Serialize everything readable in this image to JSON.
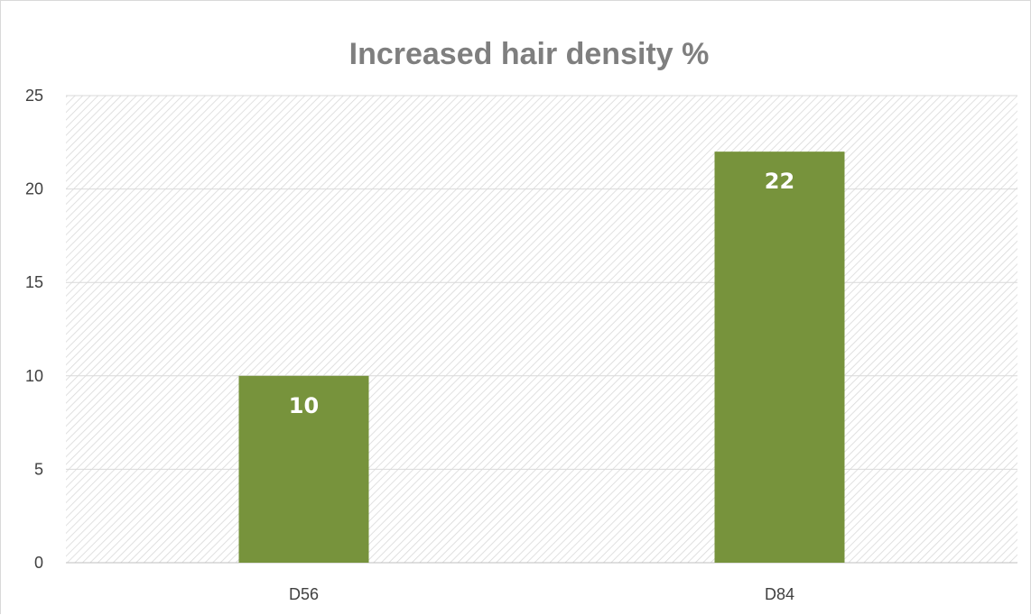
{
  "chart_data": {
    "type": "bar",
    "title": "Increased hair density %",
    "categories": [
      "D56",
      "D84"
    ],
    "values": [
      10,
      22
    ],
    "data_labels": [
      "10",
      "22"
    ],
    "xlabel": "",
    "ylabel": "",
    "ylim": [
      0,
      25
    ],
    "y_ticks": [
      "0",
      "5",
      "10",
      "15",
      "20",
      "25"
    ],
    "grid": true,
    "legend": "none",
    "colors": {
      "bar": "#77933c",
      "title": "#7f7f7f",
      "grid": "#d9d9d9",
      "hatch": "#d9d9d9"
    }
  }
}
